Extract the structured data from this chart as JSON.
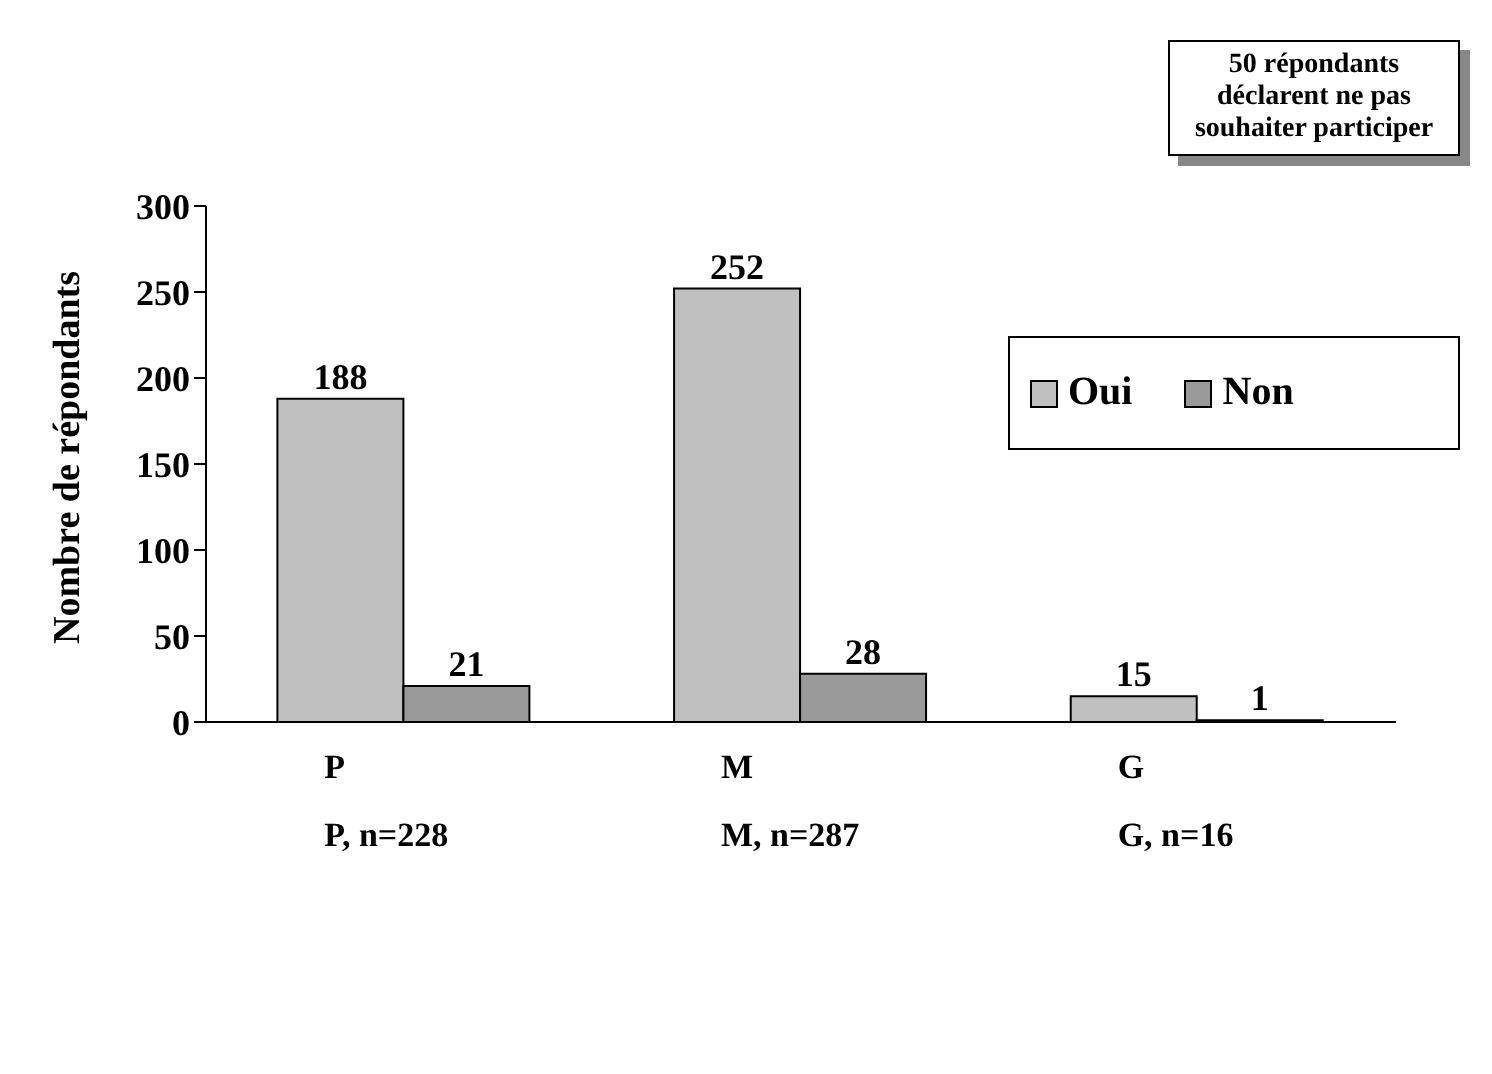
{
  "chart_data": {
    "type": "bar",
    "ylabel": "Nombre de répondants",
    "categories": [
      "P\nP, n=228",
      "M\nM, n=287",
      "G\nG, n=16"
    ],
    "series": [
      {
        "name": "Oui",
        "color": "#c0c0c0",
        "values": [
          188,
          252,
          15
        ]
      },
      {
        "name": "Non",
        "color": "#9a9a9a",
        "values": [
          21,
          28,
          1
        ]
      }
    ],
    "ylim": [
      0,
      300
    ],
    "yticks": [
      0,
      50,
      100,
      150,
      200,
      250,
      300
    ],
    "grid": false,
    "legend": "top right",
    "data_labels": true,
    "annotations": [
      "50 répondants déclarent ne pas souhaiter participer"
    ]
  }
}
